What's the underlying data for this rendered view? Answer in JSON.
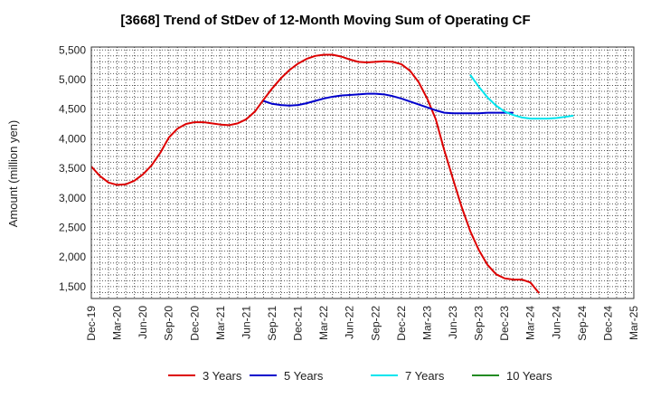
{
  "chart_data": {
    "type": "line",
    "title": "[3668]  Trend of StDev of 12-Month Moving Sum of Operating CF",
    "xlabel": "",
    "ylabel": "Amount (million yen)",
    "ylim": [
      1300,
      5550
    ],
    "yticks": [
      1500,
      2000,
      2500,
      3000,
      3500,
      4000,
      4500,
      5000,
      5500
    ],
    "ytick_labels": [
      "1,500",
      "2,000",
      "2,500",
      "3,000",
      "3,500",
      "4,000",
      "4,500",
      "5,000",
      "5,500"
    ],
    "xticks": [
      "Dec-19",
      "Mar-20",
      "Jun-20",
      "Sep-20",
      "Dec-20",
      "Mar-21",
      "Jun-21",
      "Sep-21",
      "Dec-21",
      "Mar-22",
      "Jun-22",
      "Sep-22",
      "Dec-22",
      "Mar-23",
      "Jun-23",
      "Sep-23",
      "Dec-23",
      "Mar-24",
      "Jun-24",
      "Sep-24",
      "Dec-24",
      "Mar-25"
    ],
    "grid": true,
    "legend_position": "bottom",
    "series": [
      {
        "name": "3 Years",
        "color": "#dd0000",
        "start_month": "Dec-19",
        "values": [
          3530,
          3370,
          3260,
          3220,
          3230,
          3290,
          3400,
          3550,
          3760,
          4020,
          4170,
          4250,
          4280,
          4280,
          4260,
          4240,
          4230,
          4260,
          4330,
          4460,
          4660,
          4850,
          5020,
          5160,
          5270,
          5350,
          5400,
          5420,
          5420,
          5390,
          5340,
          5300,
          5290,
          5300,
          5310,
          5300,
          5260,
          5150,
          4960,
          4680,
          4330,
          3800,
          3320,
          2850,
          2440,
          2120,
          1870,
          1710,
          1640,
          1620,
          1620,
          1570,
          1390
        ]
      },
      {
        "name": "5 Years",
        "color": "#0000cc",
        "start_month": "Aug-21",
        "values": [
          4640,
          4590,
          4570,
          4560,
          4570,
          4600,
          4640,
          4680,
          4710,
          4730,
          4740,
          4750,
          4760,
          4760,
          4750,
          4720,
          4680,
          4630,
          4580,
          4530,
          4480,
          4440,
          4430,
          4430,
          4430,
          4430,
          4440,
          4440,
          4440,
          4440
        ]
      },
      {
        "name": "7 Years",
        "color": "#00e5ee",
        "start_month": "Aug-23",
        "values": [
          5080,
          4880,
          4700,
          4560,
          4460,
          4400,
          4360,
          4340,
          4340,
          4340,
          4350,
          4370,
          4390
        ]
      },
      {
        "name": "10 Years",
        "color": "#228b22",
        "start_month": "Dec-19",
        "values": []
      }
    ]
  }
}
